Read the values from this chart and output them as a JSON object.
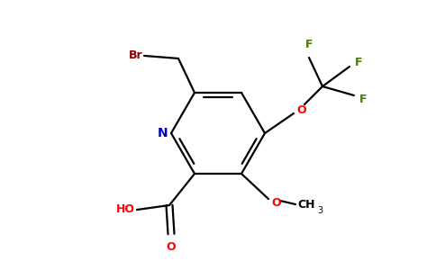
{
  "background_color": "#ffffff",
  "bond_color": "#000000",
  "N_color": "#0000cc",
  "O_color": "#ff0000",
  "Br_color": "#8b0000",
  "F_color": "#4a7a00",
  "figsize": [
    4.84,
    3.0
  ],
  "dpi": 100,
  "xlim": [
    0,
    4.84
  ],
  "ylim": [
    0,
    3.0
  ]
}
